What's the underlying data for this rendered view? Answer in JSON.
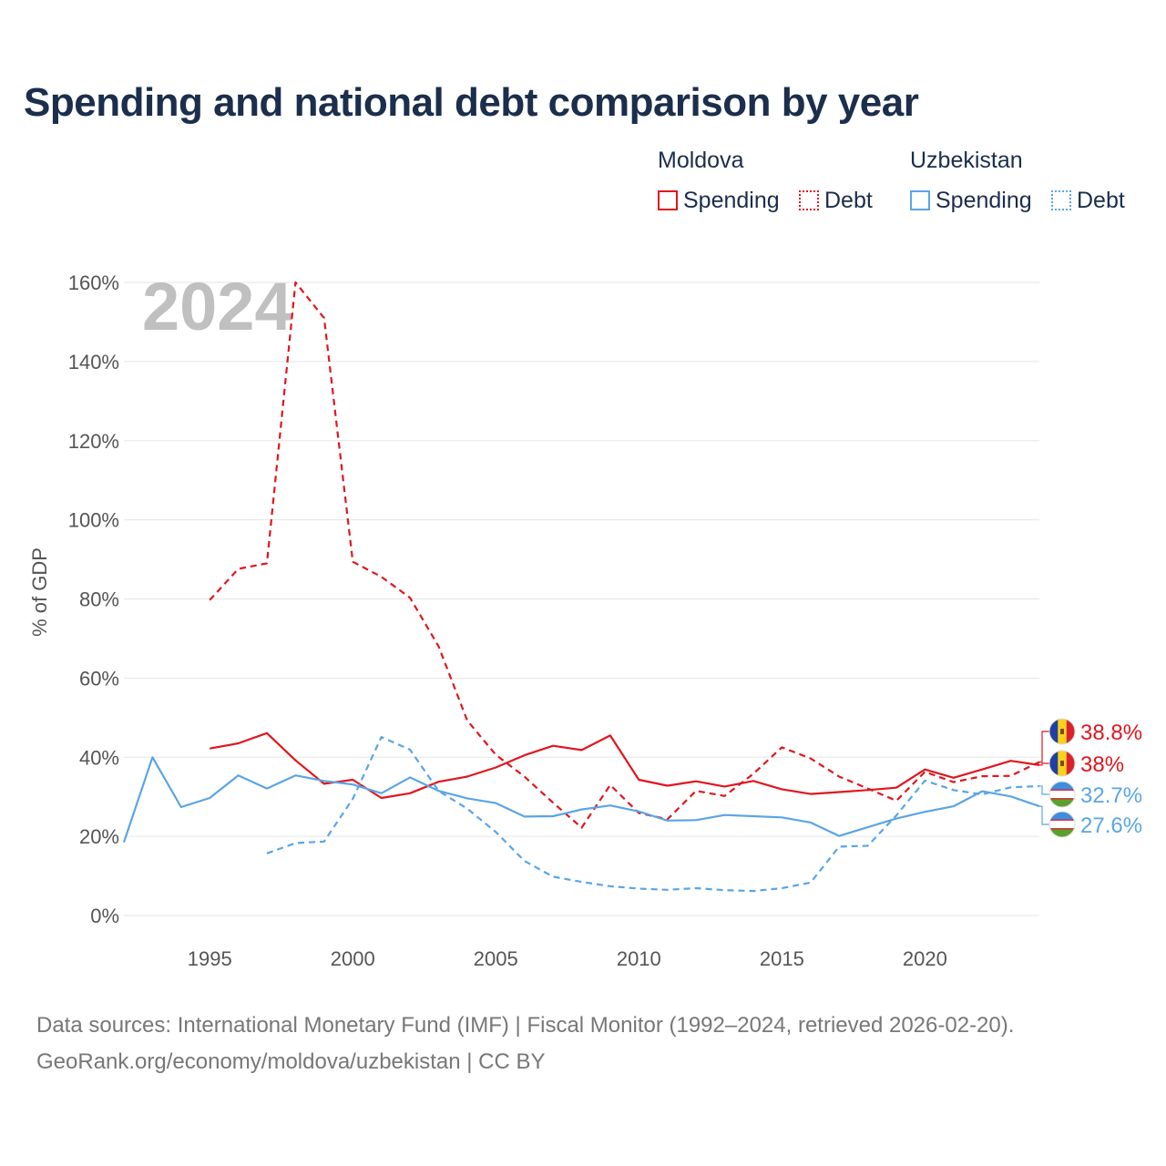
{
  "title": "Spending and national debt comparison by year",
  "legend": {
    "groups": [
      {
        "name": "Moldova",
        "spending_label": "Spending",
        "debt_label": "Debt"
      },
      {
        "name": "Uzbekistan",
        "spending_label": "Spending",
        "debt_label": "Debt"
      }
    ]
  },
  "year_watermark": "2024",
  "source_line1": "Data sources: International Monetary Fund (IMF) | Fiscal Monitor (1992–2024, retrieved 2026-02-20).",
  "source_line2": "GeoRank.org/economy/moldova/uzbekistan | CC BY",
  "colors": {
    "moldova": "#e0161f",
    "uzbekistan": "#5aa5e6",
    "grid": "#e6e6e6",
    "axis_text": "#555555",
    "watermark": "#c0c0c0"
  },
  "chart_data": {
    "type": "line",
    "title": "Spending and national debt comparison by year",
    "xlabel": "",
    "ylabel": "% of GDP",
    "xlim": [
      1992,
      2024
    ],
    "ylim": [
      0,
      160
    ],
    "x_ticks": [
      1995,
      2000,
      2005,
      2010,
      2015,
      2020
    ],
    "y_ticks": [
      0,
      20,
      40,
      60,
      80,
      100,
      120,
      140,
      160
    ],
    "y_tick_suffix": "%",
    "series": [
      {
        "name": "Moldova Spending",
        "country": "Moldova",
        "kind": "spending",
        "style": "solid",
        "color": "#e0161f",
        "x": [
          1995,
          1996,
          1997,
          1998,
          1999,
          2000,
          2001,
          2002,
          2003,
          2004,
          2005,
          2006,
          2007,
          2008,
          2009,
          2010,
          2011,
          2012,
          2013,
          2014,
          2015,
          2016,
          2017,
          2018,
          2019,
          2020,
          2021,
          2022,
          2023,
          2024
        ],
        "y": [
          42.2,
          43.5,
          46.1,
          39.2,
          33.3,
          34.3,
          29.7,
          30.9,
          33.8,
          35.1,
          37.4,
          40.5,
          42.9,
          41.8,
          45.5,
          34.3,
          32.8,
          33.9,
          32.6,
          34.0,
          31.9,
          30.7,
          31.2,
          31.7,
          32.3,
          36.9,
          34.8,
          36.9,
          39.1,
          38.0
        ]
      },
      {
        "name": "Moldova Debt",
        "country": "Moldova",
        "kind": "debt",
        "style": "dashed",
        "color": "#e0161f",
        "x": [
          1995,
          1996,
          1997,
          1998,
          1999,
          2000,
          2001,
          2002,
          2003,
          2004,
          2005,
          2006,
          2007,
          2008,
          2009,
          2010,
          2011,
          2012,
          2013,
          2014,
          2015,
          2016,
          2017,
          2018,
          2019,
          2020,
          2021,
          2022,
          2023,
          2024
        ],
        "y": [
          79.7,
          87.6,
          89.0,
          160.0,
          151.0,
          89.4,
          85.6,
          80.3,
          68.0,
          49.3,
          40.6,
          35.1,
          28.5,
          22.2,
          33.0,
          25.9,
          24.3,
          31.5,
          30.2,
          35.8,
          42.5,
          39.7,
          35.1,
          32.1,
          29.0,
          36.3,
          33.7,
          35.2,
          35.3,
          38.8
        ]
      },
      {
        "name": "Uzbekistan Spending",
        "country": "Uzbekistan",
        "kind": "spending",
        "style": "solid",
        "color": "#5aa5e6",
        "x": [
          1992,
          1993,
          1994,
          1995,
          1996,
          1997,
          1998,
          1999,
          2000,
          2001,
          2002,
          2003,
          2004,
          2005,
          2006,
          2007,
          2008,
          2009,
          2010,
          2011,
          2012,
          2013,
          2014,
          2015,
          2016,
          2017,
          2018,
          2019,
          2020,
          2021,
          2022,
          2023,
          2024
        ],
        "y": [
          18.5,
          40.0,
          27.4,
          29.7,
          35.4,
          32.1,
          35.4,
          34.0,
          33.1,
          30.9,
          34.9,
          31.5,
          29.6,
          28.4,
          25.0,
          25.1,
          26.8,
          27.8,
          26.3,
          24.0,
          24.1,
          25.4,
          25.1,
          24.8,
          23.5,
          20.1,
          22.3,
          24.5,
          26.2,
          27.6,
          31.4,
          30.1,
          27.6
        ]
      },
      {
        "name": "Uzbekistan Debt",
        "country": "Uzbekistan",
        "kind": "debt",
        "style": "dashed",
        "color": "#5aa5e6",
        "x": [
          1997,
          1998,
          1999,
          2000,
          2001,
          2002,
          2003,
          2004,
          2005,
          2006,
          2007,
          2008,
          2009,
          2010,
          2011,
          2012,
          2013,
          2014,
          2015,
          2016,
          2017,
          2018,
          2019,
          2020,
          2021,
          2022,
          2023,
          2024
        ],
        "y": [
          15.7,
          18.3,
          18.7,
          29.5,
          45.1,
          41.9,
          31.5,
          27.0,
          21.1,
          13.8,
          9.8,
          8.5,
          7.4,
          6.8,
          6.5,
          6.9,
          6.4,
          6.2,
          6.9,
          8.3,
          17.4,
          17.6,
          25.3,
          34.1,
          31.7,
          30.6,
          32.4,
          32.7
        ]
      }
    ],
    "end_labels": [
      {
        "series": "Moldova Debt",
        "text": "38.8%",
        "color": "#e0161f",
        "flag": "moldova"
      },
      {
        "series": "Moldova Spending",
        "text": "38%",
        "color": "#e0161f",
        "flag": "moldova"
      },
      {
        "series": "Uzbekistan Debt",
        "text": "32.7%",
        "color": "#5aa5e6",
        "flag": "uzbekistan"
      },
      {
        "series": "Uzbekistan Spending",
        "text": "27.6%",
        "color": "#5aa5e6",
        "flag": "uzbekistan"
      }
    ]
  }
}
